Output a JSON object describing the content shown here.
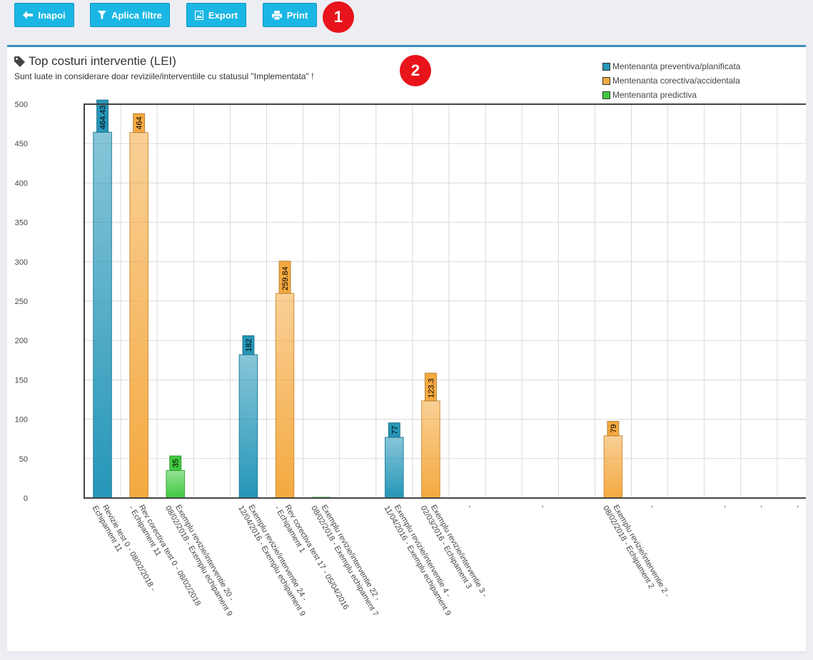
{
  "toolbar": {
    "back_label": "Inapoi",
    "filter_label": "Aplica filtre",
    "export_label": "Export",
    "print_label": "Print",
    "marker_1": "1"
  },
  "panel": {
    "marker_2": "2",
    "title": "Top costuri interventie (LEI)",
    "subtitle": "Sunt luate in considerare doar reviziile/interventiile cu statusul \"Implementata\" !"
  },
  "colors": {
    "button": "#1bb7e4",
    "accent_border": "#3c8dbc",
    "marker": "#e8141b",
    "preventive": "#2596b8",
    "corrective": "#f4a940",
    "predictive": "#3fc93f"
  },
  "chart_data": {
    "type": "bar",
    "title": "Top costuri interventie (LEI)",
    "ylim": [
      0,
      500
    ],
    "yticks": [
      0,
      50,
      100,
      150,
      200,
      250,
      300,
      350,
      400,
      450,
      500
    ],
    "grid": true,
    "legend_position": "top-right",
    "series": [
      {
        "name": "Mentenanta preventiva/planificata",
        "color": "#2596b8"
      },
      {
        "name": "Mentenanta corectiva/accidentala",
        "color": "#f4a940"
      },
      {
        "name": "Mentenanta predictiva",
        "color": "#3fc93f"
      }
    ],
    "categories": [
      "Revizie test 0 - 08/02/2018 - Echipament 11",
      "Rev corectiva test 0 - 08/02/2018 - Echipament 11",
      "Exemplu revizie/interventie 20 - 08/02/2018 - Exemplu echipament 9",
      "",
      "Exemplu revizie/interventie 24 - 12/04/2016 - Exemplu echipament 9",
      "Rev corectiva test 17 - 05/04/2016 - Echipament 1",
      "Exemplu revizie/interventie 22 - 08/02/2018 - Exemplu echipament 7",
      "",
      "Exemplu revizie/interventie 4 - 11/04/2016 - Exemplu echipament 9",
      "Exemplu revizie/interventie 3 - 02/03/2016 - Echipament 3",
      "-",
      "",
      "-",
      "",
      "Exemplu revizie/interventie 2 - 08/02/2018 - Echipament 2",
      "-",
      "",
      "-",
      "-",
      "-"
    ],
    "bars": [
      {
        "category_index": 0,
        "series": 0,
        "value": 464.43,
        "label": "464.43"
      },
      {
        "category_index": 1,
        "series": 1,
        "value": 464,
        "label": "464"
      },
      {
        "category_index": 2,
        "series": 2,
        "value": 35,
        "label": "35"
      },
      {
        "category_index": 4,
        "series": 0,
        "value": 182,
        "label": "182"
      },
      {
        "category_index": 5,
        "series": 1,
        "value": 259.84,
        "label": "259.84"
      },
      {
        "category_index": 6,
        "series": 2,
        "value": 1,
        "label": ""
      },
      {
        "category_index": 8,
        "series": 0,
        "value": 77,
        "label": "77"
      },
      {
        "category_index": 9,
        "series": 1,
        "value": 123.3,
        "label": "123.3"
      },
      {
        "category_index": 14,
        "series": 1,
        "value": 79,
        "label": "79"
      }
    ]
  }
}
